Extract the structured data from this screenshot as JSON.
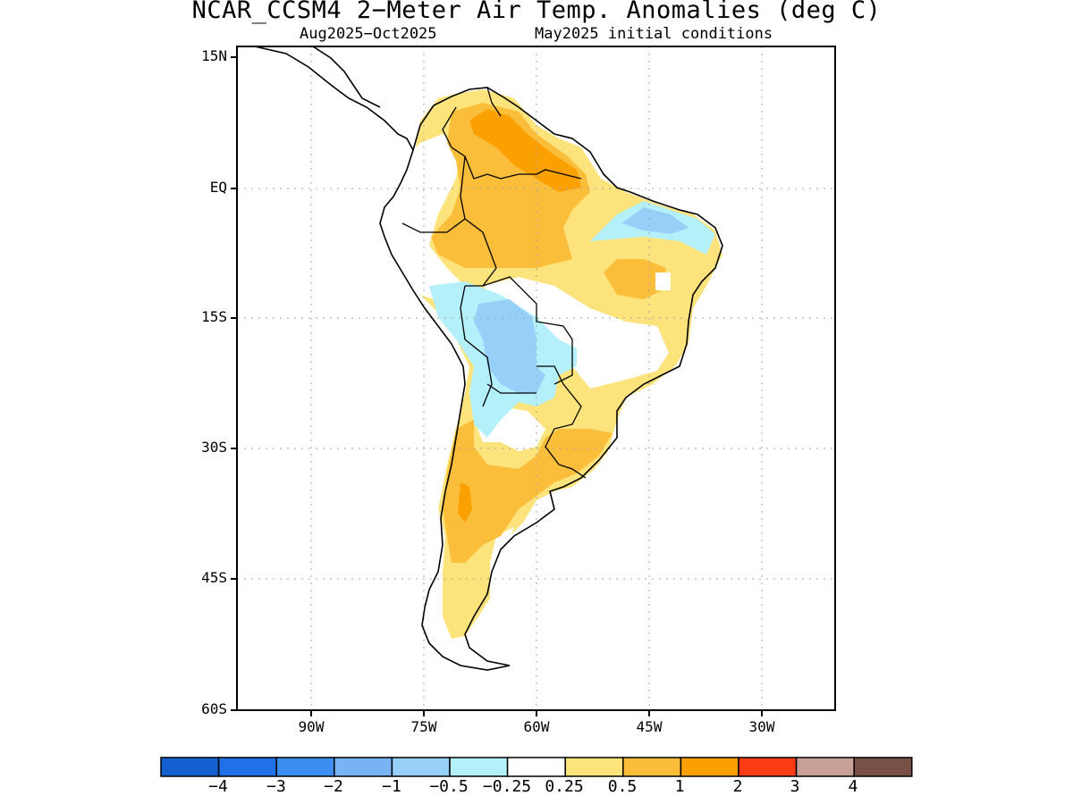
{
  "title": "NCAR_CCSM4 2−Meter Air Temp. Anomalies (deg C)",
  "subtitle_left": "Aug2025−Oct2025",
  "subtitle_right": "May2025 initial conditions",
  "y_ticks": [
    "15N",
    "EQ",
    "15S",
    "30S",
    "45S",
    "60S"
  ],
  "x_ticks": [
    "90W",
    "75W",
    "60W",
    "45W",
    "30W"
  ],
  "colorbar": {
    "colors": [
      "#1560d0",
      "#2070e8",
      "#3c8ef0",
      "#78b4f4",
      "#96cff8",
      "#b4f0fa",
      "#ffffff",
      "#fde37b",
      "#fbbe3a",
      "#faa000",
      "#fa3c14",
      "#c8a096",
      "#785046"
    ],
    "labels": [
      "−4",
      "−3",
      "−2",
      "−1",
      "−0.5",
      "−0.25",
      "0.25",
      "0.5",
      "1",
      "2",
      "3",
      "4"
    ]
  },
  "colors": {
    "neg_050_025": "#b4f0fa",
    "neg_1_050": "#96cff8",
    "pos_025_050": "#fde37b",
    "pos_050_1": "#fbbe3a",
    "pos_1_2": "#faa000",
    "coastline": "#000000"
  }
}
